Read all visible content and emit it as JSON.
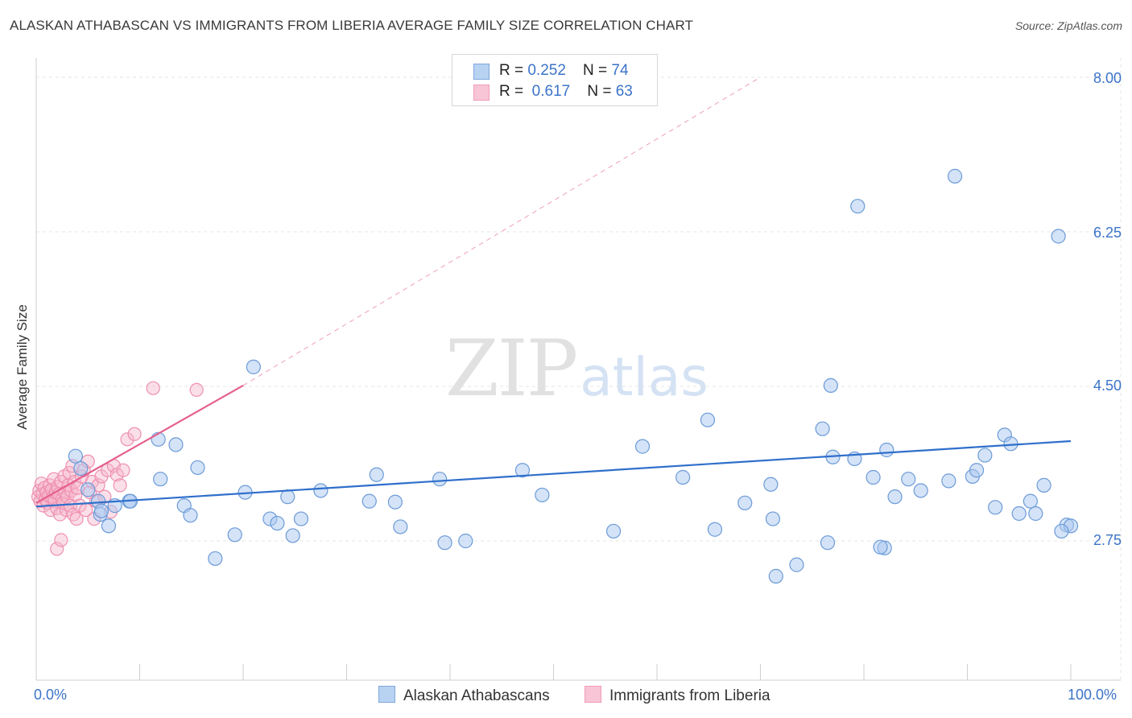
{
  "header": {
    "title": "ALASKAN ATHABASCAN VS IMMIGRANTS FROM LIBERIA AVERAGE FAMILY SIZE CORRELATION CHART",
    "source": "Source: ZipAtlas.com"
  },
  "watermark": {
    "zip": "ZIP",
    "atlas": "atlas"
  },
  "legend": {
    "rows": [
      {
        "r_label": "R = ",
        "r_value": "0.252",
        "n_label": "N = ",
        "n_value": "74"
      },
      {
        "r_label": "R = ",
        "r_value": "0.617",
        "n_label": "N = ",
        "n_value": "63"
      }
    ]
  },
  "colors": {
    "blue_fill": "#a9c8ef",
    "blue_stroke": "#6c9bd8",
    "blue_line": "#2f6fcb",
    "pink_fill": "#f6b7cb",
    "pink_stroke": "#ee8fb0",
    "pink_line": "#e5608e",
    "tick_text": "#3b73c8",
    "grid": "#e6e6e6"
  },
  "chart_data": {
    "type": "scatter",
    "title": "ALASKAN ATHABASCAN VS IMMIGRANTS FROM LIBERIA AVERAGE FAMILY SIZE CORRELATION CHART",
    "xlabel": "",
    "ylabel": "Average Family Size",
    "xlim": [
      0,
      100
    ],
    "ylim": [
      1.5,
      8.1
    ],
    "x_tick_labels": [
      "0.0%",
      "100.0%"
    ],
    "y_ticks": [
      2.75,
      4.5,
      6.25,
      8.0
    ],
    "y_tick_labels": [
      "2.75",
      "4.50",
      "6.25",
      "8.00"
    ],
    "grid": true,
    "legend_position": "top-center",
    "series": [
      {
        "name": "Alaskan Athabascans",
        "r": 0.252,
        "n": 74,
        "trend": {
          "x": [
            0,
            100
          ],
          "y": [
            3.14,
            3.88
          ]
        },
        "points": [
          [
            3.8,
            3.71
          ],
          [
            4.3,
            3.57
          ],
          [
            5.0,
            3.33
          ],
          [
            6.0,
            3.2
          ],
          [
            6.2,
            3.05
          ],
          [
            6.3,
            3.09
          ],
          [
            7.0,
            2.92
          ],
          [
            7.6,
            3.15
          ],
          [
            9.0,
            3.2
          ],
          [
            9.1,
            3.2
          ],
          [
            11.8,
            3.9
          ],
          [
            12.0,
            3.45
          ],
          [
            13.5,
            3.84
          ],
          [
            14.3,
            3.15
          ],
          [
            14.9,
            3.04
          ],
          [
            15.6,
            3.58
          ],
          [
            17.3,
            2.55
          ],
          [
            19.2,
            2.82
          ],
          [
            20.2,
            3.3
          ],
          [
            21.0,
            4.72
          ],
          [
            22.6,
            3.0
          ],
          [
            23.3,
            2.95
          ],
          [
            24.3,
            3.25
          ],
          [
            24.8,
            2.81
          ],
          [
            25.6,
            3.0
          ],
          [
            27.5,
            3.32
          ],
          [
            32.2,
            3.2
          ],
          [
            32.9,
            3.5
          ],
          [
            34.7,
            3.19
          ],
          [
            35.2,
            2.91
          ],
          [
            39.0,
            3.45
          ],
          [
            39.5,
            2.73
          ],
          [
            41.5,
            2.75
          ],
          [
            47.0,
            3.55
          ],
          [
            58.6,
            3.82
          ],
          [
            65.6,
            2.88
          ],
          [
            68.5,
            3.18
          ],
          [
            76.0,
            4.02
          ],
          [
            76.5,
            2.73
          ],
          [
            76.8,
            4.51
          ],
          [
            79.1,
            3.68
          ],
          [
            79.4,
            6.54
          ],
          [
            80.9,
            3.47
          ],
          [
            82.0,
            2.67
          ],
          [
            83.0,
            3.25
          ],
          [
            84.3,
            3.45
          ],
          [
            88.8,
            6.88
          ],
          [
            90.5,
            3.48
          ],
          [
            91.7,
            3.72
          ],
          [
            92.7,
            3.13
          ],
          [
            96.1,
            3.2
          ],
          [
            96.6,
            3.06
          ],
          [
            98.8,
            6.2
          ],
          [
            99.6,
            2.93
          ],
          [
            100.0,
            2.92
          ],
          [
            85.5,
            3.32
          ],
          [
            64.9,
            4.12
          ],
          [
            48.9,
            3.27
          ],
          [
            55.8,
            2.86
          ],
          [
            62.5,
            3.47
          ],
          [
            71.0,
            3.39
          ],
          [
            73.5,
            2.48
          ],
          [
            71.2,
            3.0
          ],
          [
            71.5,
            2.35
          ],
          [
            77.0,
            3.7
          ],
          [
            81.6,
            2.68
          ],
          [
            82.2,
            3.78
          ],
          [
            88.2,
            3.43
          ],
          [
            90.9,
            3.55
          ],
          [
            93.6,
            3.95
          ],
          [
            94.2,
            3.85
          ],
          [
            95.0,
            3.06
          ],
          [
            97.4,
            3.38
          ],
          [
            99.1,
            2.86
          ]
        ]
      },
      {
        "name": "Immigrants from Liberia",
        "r": 0.617,
        "n": 63,
        "trend": {
          "x": [
            0,
            20
          ],
          "y": [
            3.18,
            4.51
          ]
        },
        "trend_extension": {
          "x": [
            20,
            70
          ],
          "y": [
            4.51,
            8.0
          ]
        },
        "points": [
          [
            0.2,
            3.25
          ],
          [
            0.3,
            3.32
          ],
          [
            0.4,
            3.2
          ],
          [
            0.5,
            3.4
          ],
          [
            0.6,
            3.28
          ],
          [
            0.7,
            3.15
          ],
          [
            0.8,
            3.35
          ],
          [
            0.9,
            3.22
          ],
          [
            1.0,
            3.3
          ],
          [
            1.1,
            3.18
          ],
          [
            1.2,
            3.26
          ],
          [
            1.3,
            3.38
          ],
          [
            1.4,
            3.1
          ],
          [
            1.5,
            3.33
          ],
          [
            1.6,
            3.24
          ],
          [
            1.7,
            3.45
          ],
          [
            1.8,
            3.2
          ],
          [
            1.9,
            3.3
          ],
          [
            2.0,
            3.12
          ],
          [
            2.1,
            3.36
          ],
          [
            2.2,
            3.28
          ],
          [
            2.3,
            3.05
          ],
          [
            2.4,
            3.42
          ],
          [
            2.5,
            3.22
          ],
          [
            2.6,
            3.18
          ],
          [
            2.7,
            3.48
          ],
          [
            2.8,
            3.3
          ],
          [
            2.9,
            3.1
          ],
          [
            3.0,
            3.25
          ],
          [
            3.1,
            3.38
          ],
          [
            3.2,
            3.52
          ],
          [
            3.3,
            3.15
          ],
          [
            3.4,
            3.32
          ],
          [
            3.5,
            3.6
          ],
          [
            3.6,
            3.05
          ],
          [
            3.7,
            3.42
          ],
          [
            3.8,
            3.27
          ],
          [
            3.9,
            3.0
          ],
          [
            4.0,
            3.35
          ],
          [
            4.2,
            3.15
          ],
          [
            4.4,
            3.48
          ],
          [
            4.6,
            3.55
          ],
          [
            4.8,
            3.1
          ],
          [
            5.0,
            3.65
          ],
          [
            5.2,
            3.3
          ],
          [
            5.4,
            3.42
          ],
          [
            5.6,
            3.0
          ],
          [
            5.8,
            3.2
          ],
          [
            6.0,
            3.38
          ],
          [
            6.3,
            3.48
          ],
          [
            6.6,
            3.25
          ],
          [
            6.9,
            3.55
          ],
          [
            7.2,
            3.08
          ],
          [
            7.5,
            3.6
          ],
          [
            7.8,
            3.5
          ],
          [
            8.1,
            3.38
          ],
          [
            8.4,
            3.55
          ],
          [
            8.8,
            3.9
          ],
          [
            9.5,
            3.96
          ],
          [
            11.3,
            4.48
          ],
          [
            15.5,
            4.46
          ],
          [
            2.0,
            2.66
          ],
          [
            2.4,
            2.76
          ]
        ]
      }
    ]
  },
  "bottom_legend": [
    {
      "label": "Alaskan Athabascans"
    },
    {
      "label": "Immigrants from Liberia"
    }
  ]
}
